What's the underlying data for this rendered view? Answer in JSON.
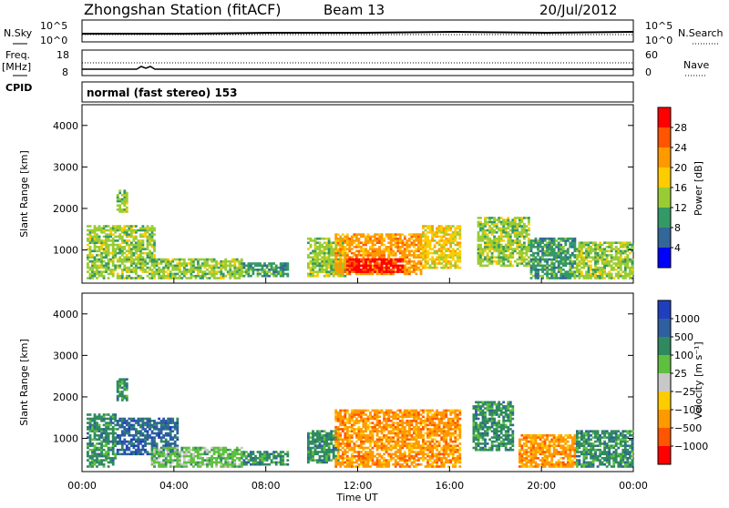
{
  "header": {
    "title": "Zhongshan Station (fitACF)",
    "beam": "Beam 13",
    "date": "20/Jul/2012"
  },
  "top_panels": {
    "nsky_label": "N.Sky",
    "nsky_ticks": [
      "10^5",
      "10^0"
    ],
    "nsearch_label": "N.Search",
    "nsearch_ticks": [
      "10^5",
      "10^0"
    ],
    "freq_label": "Freq.",
    "freq_unit": "[MHz]",
    "freq_ticks": [
      "18",
      "8"
    ],
    "nave_label": "Nave",
    "nave_ticks": [
      "60",
      "0"
    ],
    "cpid_label": "CPID",
    "cpid_text": "normal (fast stereo) 153"
  },
  "chart_data": [
    {
      "type": "heatmap",
      "name": "power",
      "ylabel": "Slant Range [km]",
      "ylim": [
        200,
        4500
      ],
      "yticks": [
        1000,
        2000,
        3000,
        4000
      ],
      "xlim": [
        0,
        24
      ],
      "colorbar_label": "Power [dB]",
      "colorbar_ticks": [
        "28",
        "24",
        "20",
        "16",
        "12",
        "8",
        "4"
      ],
      "colorbar_colors": [
        "#ff0000",
        "#ff5500",
        "#ff9900",
        "#ffcc00",
        "#99cc33",
        "#339966",
        "#336699",
        "#0000ff"
      ],
      "regions": [
        {
          "t0": 0.2,
          "t1": 3.2,
          "r0": 300,
          "r1": 1600,
          "level": 12
        },
        {
          "t0": 1.5,
          "t1": 2.0,
          "r0": 1900,
          "r1": 2450,
          "level": 14
        },
        {
          "t0": 3.2,
          "t1": 7.0,
          "r0": 300,
          "r1": 800,
          "level": 12
        },
        {
          "t0": 7.0,
          "t1": 9.0,
          "r0": 350,
          "r1": 700,
          "level": 10
        },
        {
          "t0": 9.8,
          "t1": 11.5,
          "r0": 350,
          "r1": 1300,
          "level": 14
        },
        {
          "t0": 11.0,
          "t1": 14.8,
          "r0": 400,
          "r1": 1400,
          "level": 22
        },
        {
          "t0": 11.5,
          "t1": 14.0,
          "r0": 450,
          "r1": 800,
          "level": 28
        },
        {
          "t0": 14.8,
          "t1": 16.5,
          "r0": 550,
          "r1": 1600,
          "level": 16
        },
        {
          "t0": 17.2,
          "t1": 19.5,
          "r0": 600,
          "r1": 1800,
          "level": 12
        },
        {
          "t0": 19.5,
          "t1": 21.5,
          "r0": 300,
          "r1": 1300,
          "level": 10
        },
        {
          "t0": 21.5,
          "t1": 24.0,
          "r0": 300,
          "r1": 1200,
          "level": 14
        }
      ]
    },
    {
      "type": "heatmap",
      "name": "velocity",
      "ylabel": "Slant Range [km]",
      "ylim": [
        200,
        4500
      ],
      "yticks": [
        1000,
        2000,
        3000,
        4000
      ],
      "xlim": [
        0,
        24
      ],
      "xticks": [
        "00:00",
        "04:00",
        "08:00",
        "12:00",
        "16:00",
        "20:00",
        "00:00"
      ],
      "xlabel": "Time UT",
      "colorbar_label": "Velocity [m s⁻¹]",
      "colorbar_ticks": [
        "1000",
        "500",
        "100",
        "25",
        "−25",
        "−100",
        "−500",
        "−1000"
      ],
      "colorbar_colors": [
        "#1f3fbf",
        "#2f5fa0",
        "#2f8a5f",
        "#5fbf3f",
        "#c8c8c8",
        "#ffcc00",
        "#ff9900",
        "#ff5500",
        "#ff0000"
      ],
      "regions": [
        {
          "t0": 0.2,
          "t1": 1.5,
          "r0": 300,
          "r1": 1600,
          "level": 300
        },
        {
          "t0": 1.5,
          "t1": 4.2,
          "r0": 600,
          "r1": 1500,
          "level": 900
        },
        {
          "t0": 1.5,
          "t1": 2.0,
          "r0": 1900,
          "r1": 2450,
          "level": 300
        },
        {
          "t0": 3.0,
          "t1": 7.0,
          "r0": 300,
          "r1": 800,
          "level": 80
        },
        {
          "t0": 7.0,
          "t1": 9.0,
          "r0": 350,
          "r1": 700,
          "level": 100
        },
        {
          "t0": 9.8,
          "t1": 11.2,
          "r0": 400,
          "r1": 1200,
          "level": 150
        },
        {
          "t0": 11.0,
          "t1": 16.5,
          "r0": 300,
          "r1": 1700,
          "level": -300
        },
        {
          "t0": 17.0,
          "t1": 18.8,
          "r0": 700,
          "r1": 1900,
          "level": 300
        },
        {
          "t0": 19.0,
          "t1": 21.5,
          "r0": 300,
          "r1": 1100,
          "level": -150
        },
        {
          "t0": 21.5,
          "t1": 24.0,
          "r0": 300,
          "r1": 1200,
          "level": 200
        }
      ]
    }
  ]
}
